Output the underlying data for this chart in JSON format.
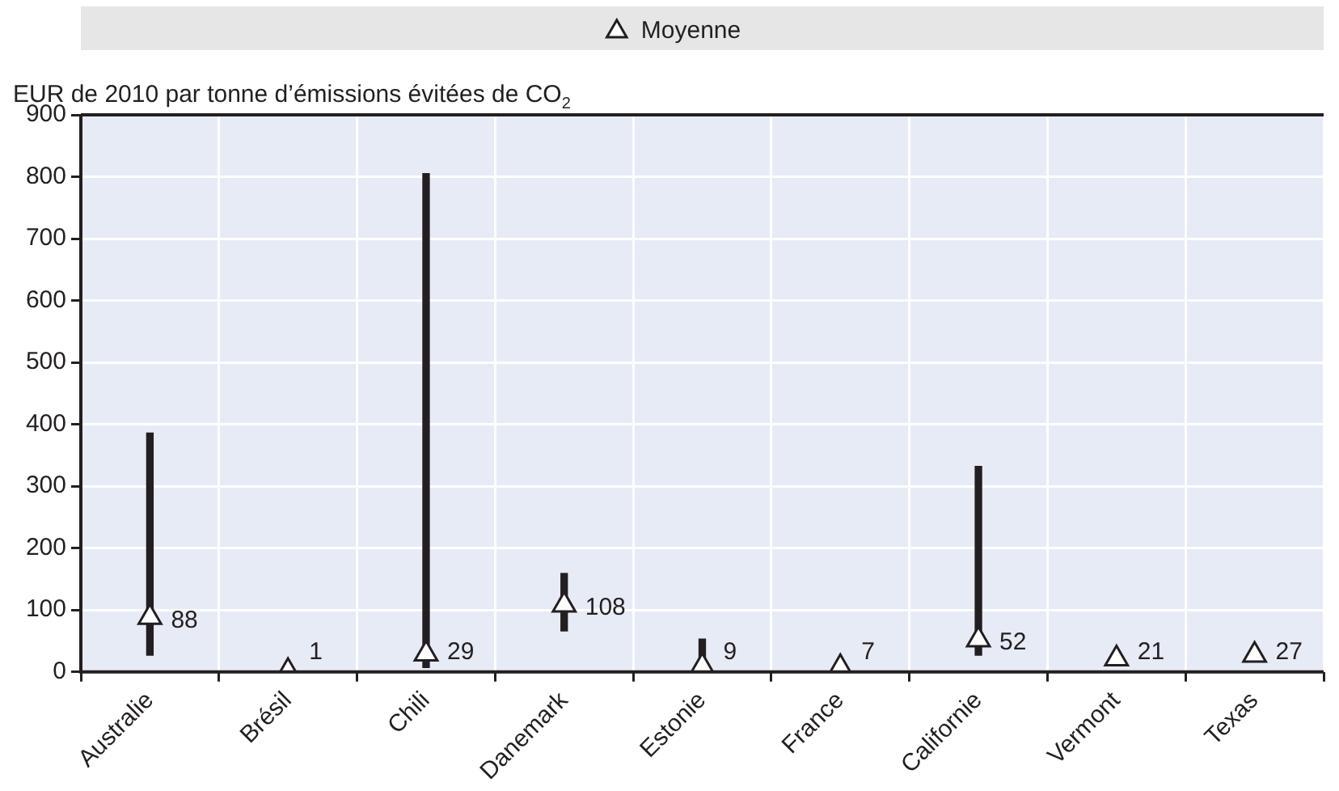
{
  "chart_data": {
    "type": "bar",
    "ylabel": "EUR de 2010 par tonne d’émissions évitées de CO$_{2}$",
    "categories": [
      "Australie",
      "Brésil",
      "Chili",
      "Danemark",
      "Estonie",
      "France",
      "Californie",
      "Vermont",
      "Texas"
    ],
    "series": [
      {
        "color": "#231f20",
        "base": [
          27,
          null,
          7,
          66,
          0,
          null,
          27,
          null,
          null
        ],
        "values": [
          359,
          null,
          798,
          93,
          53,
          null,
          305,
          null,
          null
        ]
      },
      {
        "type": "scatter",
        "name": "Moyenne",
        "color": "#231f20",
        "marker": "triangle",
        "values": [
          88,
          1,
          29,
          108,
          9,
          7,
          52,
          21,
          27
        ],
        "value_labels": [
          "88",
          "1",
          "29",
          "108",
          "9",
          "7",
          "52",
          "21",
          "27"
        ]
      }
    ],
    "ylim": [
      0,
      900
    ],
    "yticks": [
      0,
      100,
      200,
      300,
      400,
      500,
      600,
      700,
      800,
      900
    ],
    "grid": true,
    "legend": "top"
  }
}
